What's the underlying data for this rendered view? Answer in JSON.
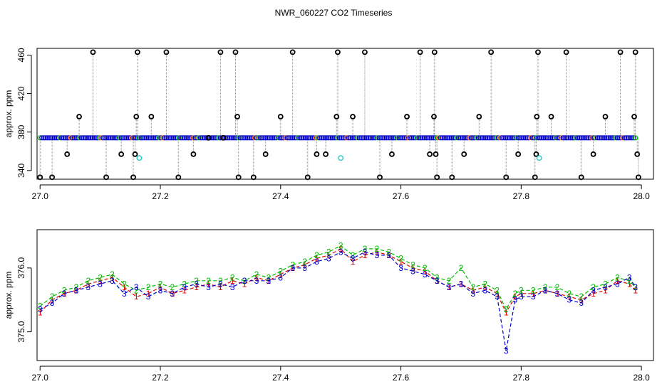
{
  "title": "NWR_060227  CO2 Timeseries",
  "colors": {
    "red": "#dd0000",
    "green": "#00bb00",
    "blue": "#0000cc",
    "black": "#000000",
    "cyan": "#33cccc",
    "gray": "#888888"
  },
  "chart_data": [
    {
      "type": "scatter",
      "ylabel": "approx. ppm",
      "xlim": [
        26.995,
        28.02
      ],
      "ylim": [
        331,
        467
      ],
      "x_ticks": [
        "27.0",
        "27.2",
        "27.4",
        "27.6",
        "27.8",
        "28.0"
      ],
      "y_ticks": [
        "340",
        "380",
        "420",
        "460"
      ],
      "series": [
        {
          "marker": "blue-circle",
          "y": 374,
          "x_start": 27.0,
          "x_end": 27.99
        },
        {
          "marker": "black-circle",
          "points": [
            [
              27.0,
              333
            ],
            [
              27.02,
              333
            ],
            [
              27.045,
              357
            ],
            [
              27.065,
              396
            ],
            [
              27.088,
              463
            ],
            [
              27.11,
              333
            ],
            [
              27.135,
              357
            ],
            [
              27.155,
              333
            ],
            [
              27.158,
              357
            ],
            [
              27.16,
              396
            ],
            [
              27.162,
              463
            ],
            [
              27.185,
              396
            ],
            [
              27.21,
              463
            ],
            [
              27.23,
              333
            ],
            [
              27.255,
              357
            ],
            [
              27.28,
              374
            ],
            [
              27.3,
              463
            ],
            [
              27.305,
              374
            ],
            [
              27.325,
              463
            ],
            [
              27.328,
              396
            ],
            [
              27.33,
              333
            ],
            [
              27.355,
              333
            ],
            [
              27.375,
              357
            ],
            [
              27.4,
              396
            ],
            [
              27.42,
              463
            ],
            [
              27.445,
              333
            ],
            [
              27.46,
              357
            ],
            [
              27.475,
              357
            ],
            [
              27.493,
              396
            ],
            [
              27.495,
              463
            ],
            [
              27.52,
              396
            ],
            [
              27.54,
              463
            ],
            [
              27.565,
              333
            ],
            [
              27.585,
              357
            ],
            [
              27.61,
              396
            ],
            [
              27.632,
              463
            ],
            [
              27.648,
              357
            ],
            [
              27.655,
              396
            ],
            [
              27.656,
              463
            ],
            [
              27.658,
              357
            ],
            [
              27.66,
              333
            ],
            [
              27.685,
              333
            ],
            [
              27.705,
              357
            ],
            [
              27.73,
              396
            ],
            [
              27.75,
              463
            ],
            [
              27.775,
              333
            ],
            [
              27.795,
              357
            ],
            [
              27.823,
              333
            ],
            [
              27.825,
              357
            ],
            [
              27.826,
              396
            ],
            [
              27.828,
              463
            ],
            [
              27.85,
              396
            ],
            [
              27.875,
              463
            ],
            [
              27.9,
              333
            ],
            [
              27.92,
              357
            ],
            [
              27.94,
              396
            ],
            [
              27.965,
              463
            ],
            [
              27.988,
              396
            ],
            [
              27.99,
              463
            ],
            [
              27.993,
              357
            ],
            [
              27.995,
              333
            ]
          ]
        },
        {
          "marker": "cyan-circle",
          "points": [
            [
              27.165,
              353
            ],
            [
              27.5,
              353
            ],
            [
              27.83,
              353
            ]
          ]
        }
      ]
    },
    {
      "type": "line",
      "ylabel": "approx. ppm",
      "xlim": [
        26.995,
        28.02
      ],
      "ylim": [
        374.55,
        376.6
      ],
      "x_ticks": [
        "27.0",
        "27.2",
        "27.4",
        "27.6",
        "27.8",
        "28.0"
      ],
      "y_ticks": [
        "375.0",
        "376.0"
      ],
      "series": [
        {
          "name": "1",
          "x": [
            27.0,
            27.02,
            27.04,
            27.06,
            27.08,
            27.1,
            27.12,
            27.14,
            27.16,
            27.18,
            27.2,
            27.22,
            27.24,
            27.26,
            27.28,
            27.3,
            27.32,
            27.34,
            27.36,
            27.38,
            27.4,
            27.42,
            27.44,
            27.46,
            27.48,
            27.5,
            27.52,
            27.54,
            27.56,
            27.58,
            27.6,
            27.62,
            27.64,
            27.66,
            27.68,
            27.7,
            27.72,
            27.74,
            27.76,
            27.775,
            27.79,
            27.8,
            27.82,
            27.84,
            27.86,
            27.88,
            27.9,
            27.92,
            27.94,
            27.96,
            27.98,
            27.99
          ],
          "y": [
            375.3,
            375.5,
            375.6,
            375.65,
            375.75,
            375.8,
            375.85,
            375.7,
            375.55,
            375.6,
            375.7,
            375.6,
            375.65,
            375.7,
            375.75,
            375.7,
            375.8,
            375.75,
            375.85,
            375.8,
            375.9,
            376.0,
            376.05,
            376.15,
            376.2,
            376.3,
            376.1,
            376.2,
            376.25,
            376.2,
            376.1,
            376.0,
            375.95,
            375.8,
            375.7,
            375.75,
            375.65,
            375.7,
            375.6,
            375.3,
            375.55,
            375.6,
            375.6,
            375.65,
            375.6,
            375.55,
            375.5,
            375.6,
            375.65,
            375.8,
            375.75,
            375.65
          ]
        },
        {
          "name": "2",
          "x": [
            27.0,
            27.02,
            27.04,
            27.06,
            27.08,
            27.1,
            27.12,
            27.14,
            27.16,
            27.18,
            27.2,
            27.22,
            27.24,
            27.26,
            27.28,
            27.3,
            27.32,
            27.34,
            27.36,
            27.38,
            27.4,
            27.42,
            27.44,
            27.46,
            27.48,
            27.5,
            27.52,
            27.54,
            27.56,
            27.58,
            27.6,
            27.62,
            27.64,
            27.66,
            27.68,
            27.7,
            27.72,
            27.74,
            27.76,
            27.775,
            27.79,
            27.8,
            27.82,
            27.84,
            27.86,
            27.88,
            27.9,
            27.92,
            27.94,
            27.96,
            27.98,
            27.99
          ],
          "y": [
            375.4,
            375.55,
            375.65,
            375.7,
            375.8,
            375.85,
            375.9,
            375.75,
            375.65,
            375.7,
            375.75,
            375.7,
            375.75,
            375.8,
            375.8,
            375.8,
            375.85,
            375.8,
            375.9,
            375.85,
            375.95,
            376.05,
            376.1,
            376.2,
            376.25,
            376.35,
            376.2,
            376.3,
            376.3,
            376.25,
            376.15,
            376.05,
            376.0,
            375.85,
            375.8,
            376.0,
            375.7,
            375.75,
            375.65,
            375.35,
            375.6,
            375.65,
            375.65,
            375.7,
            375.7,
            375.6,
            375.55,
            375.7,
            375.75,
            375.85,
            375.8,
            375.7
          ]
        },
        {
          "name": "3",
          "x": [
            27.0,
            27.02,
            27.04,
            27.06,
            27.08,
            27.1,
            27.12,
            27.14,
            27.16,
            27.18,
            27.2,
            27.22,
            27.24,
            27.26,
            27.28,
            27.3,
            27.32,
            27.34,
            27.36,
            27.38,
            27.4,
            27.42,
            27.44,
            27.46,
            27.48,
            27.5,
            27.52,
            27.54,
            27.56,
            27.58,
            27.6,
            27.62,
            27.64,
            27.66,
            27.68,
            27.7,
            27.72,
            27.74,
            27.76,
            27.775,
            27.79,
            27.8,
            27.82,
            27.84,
            27.86,
            27.88,
            27.9,
            27.92,
            27.94,
            27.96,
            27.98,
            27.99
          ],
          "y": [
            375.35,
            375.45,
            375.6,
            375.65,
            375.7,
            375.75,
            375.8,
            375.6,
            375.7,
            375.55,
            375.65,
            375.6,
            375.7,
            375.75,
            375.7,
            375.75,
            375.7,
            375.8,
            375.8,
            375.8,
            375.85,
            376.0,
            376.0,
            376.1,
            376.15,
            376.25,
            376.15,
            376.25,
            376.2,
            376.2,
            376.0,
            375.95,
            375.9,
            375.8,
            375.7,
            375.75,
            375.6,
            375.65,
            375.55,
            374.7,
            375.5,
            375.55,
            375.55,
            375.65,
            375.6,
            375.5,
            375.45,
            375.65,
            375.7,
            375.75,
            375.85,
            375.7
          ]
        }
      ]
    }
  ]
}
